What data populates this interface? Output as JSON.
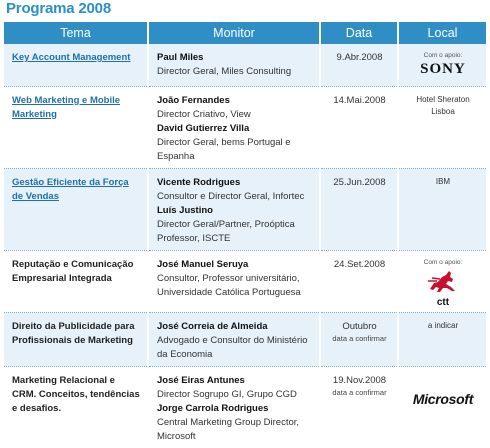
{
  "title": "Programa 2008",
  "headers": {
    "tema": "Tema",
    "monitor": "Monitor",
    "data": "Data",
    "local": "Local"
  },
  "rows": [
    {
      "tema": "Key Account Management",
      "tema_link": true,
      "monitors": [
        {
          "name": "Paul Miles",
          "role": "Director Geral, Miles Consulting"
        }
      ],
      "date": "9.Abr.2008",
      "date_sub": "",
      "local_apoio": "Com o apoio:",
      "local_text": "",
      "local_logo": "SONY"
    },
    {
      "tema": "Web Marketing e Mobile Marketing",
      "tema_link": true,
      "monitors": [
        {
          "name": "João Fernandes",
          "role": "Director Criativo, View"
        },
        {
          "name": "David Gutierrez Villa",
          "role": "Director Geral, bems Portugal e Espanha"
        }
      ],
      "date": "14.Mai.2008",
      "date_sub": "",
      "local_apoio": "",
      "local_text": "Hotel Sheraton Lisboa",
      "local_logo": ""
    },
    {
      "tema": "Gestão Eficiente da Força de Vendas",
      "tema_link": true,
      "monitors": [
        {
          "name": "Vicente Rodrigues",
          "role": "Consultor e Director Geral, Infortec"
        },
        {
          "name": "Luís Justino",
          "role": "Director Geral/Partner, Proóptica Professor, ISCTE"
        }
      ],
      "date": "25.Jun.2008",
      "date_sub": "",
      "local_apoio": "",
      "local_text": "IBM",
      "local_logo": ""
    },
    {
      "tema": "Reputação e Comunicação Empresarial Integrada",
      "tema_link": false,
      "monitors": [
        {
          "name": "José Manuel Seruya",
          "role": "Consultor, Professor universitário, Universidade Católica Portuguesa"
        }
      ],
      "date": "24.Set.2008",
      "date_sub": "",
      "local_apoio": "Com o apoio:",
      "local_text": "",
      "local_logo": "ctt"
    },
    {
      "tema": "Direito da Publicidade para Profissionais de Marketing",
      "tema_link": false,
      "monitors": [
        {
          "name": "José Correia de Almeida",
          "role": "Advogado e Consultor do Ministério da Economia"
        }
      ],
      "date": "Outubro",
      "date_sub": "data a confirmar",
      "local_apoio": "",
      "local_text": "a indicar",
      "local_logo": ""
    },
    {
      "tema": "Marketing Relacional e CRM. Conceitos, tendências e desafios.",
      "tema_link": false,
      "monitors": [
        {
          "name": "José Eiras Antunes",
          "role": "Director Sogrupo GI, Grupo CGD"
        },
        {
          "name": "Jorge Carrola Rodrigues",
          "role": "Central Marketing Group Director, Microsoft"
        }
      ],
      "date": "19.Nov.2008",
      "date_sub": "data a confirmar",
      "local_apoio": "",
      "local_text": "",
      "local_logo": "Microsoft"
    }
  ],
  "colors": {
    "accent": "#2f8fc4",
    "title": "#2b8fc9",
    "row_tint": "#e6f1f9",
    "link": "#1f6fae",
    "ctt_red": "#c8102e"
  }
}
